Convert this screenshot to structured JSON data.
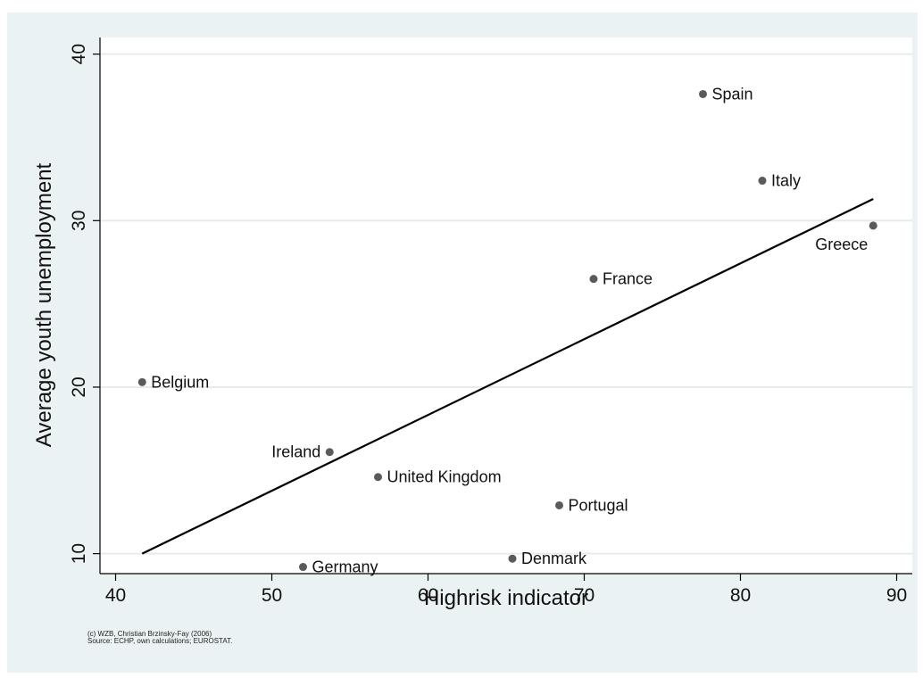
{
  "chart_data": {
    "type": "scatter",
    "xlabel": "Highrisk indicator",
    "ylabel": "Average youth unemployment",
    "xlim": [
      39,
      91
    ],
    "ylim": [
      8.8,
      41
    ],
    "x_ticks": [
      40,
      50,
      60,
      70,
      80,
      90
    ],
    "y_ticks": [
      10,
      20,
      30,
      40
    ],
    "grid": "horizontal",
    "points": [
      {
        "label": "Spain",
        "x": 77.6,
        "y": 37.6,
        "label_pos": "right"
      },
      {
        "label": "Italy",
        "x": 81.4,
        "y": 32.4,
        "label_pos": "right"
      },
      {
        "label": "Greece",
        "x": 88.5,
        "y": 29.7,
        "label_pos": "below-left"
      },
      {
        "label": "France",
        "x": 70.6,
        "y": 26.5,
        "label_pos": "right"
      },
      {
        "label": "Belgium",
        "x": 41.7,
        "y": 20.3,
        "label_pos": "right"
      },
      {
        "label": "Ireland",
        "x": 53.7,
        "y": 16.1,
        "label_pos": "left"
      },
      {
        "label": "United Kingdom",
        "x": 56.8,
        "y": 14.6,
        "label_pos": "right"
      },
      {
        "label": "Portugal",
        "x": 68.4,
        "y": 12.9,
        "label_pos": "right"
      },
      {
        "label": "Denmark",
        "x": 65.4,
        "y": 9.7,
        "label_pos": "right"
      },
      {
        "label": "Germany",
        "x": 52.0,
        "y": 9.2,
        "label_pos": "right"
      }
    ],
    "fit_line": {
      "x": [
        41.7,
        88.5
      ],
      "y": [
        10.0,
        31.3
      ]
    },
    "colors": {
      "background": "#eaf2f3",
      "plot_area": "#ffffff",
      "marker": "#5a5a5a",
      "fit_line": "#000000",
      "grid": "#e6ebec"
    }
  },
  "footer": {
    "credit": "(c) WZB, Christian Brzinsky-Fay (2006)",
    "source": "Source: ECHP, own calculations; EUROSTAT."
  }
}
